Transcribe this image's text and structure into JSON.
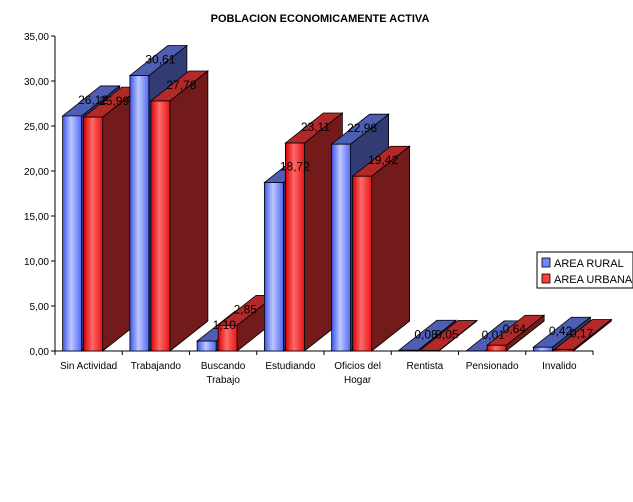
{
  "chart_data": {
    "type": "bar",
    "title": "POBLACION ECONOMICAMENTE ACTIVA",
    "categories": [
      [
        "Sin Actividad"
      ],
      [
        "Trabajando"
      ],
      [
        "Buscando",
        "Trabajo"
      ],
      [
        "Estudiando"
      ],
      [
        "Oficios del",
        "Hogar"
      ],
      [
        "Rentista"
      ],
      [
        "Pensionado"
      ],
      [
        "Invalido"
      ]
    ],
    "series": [
      {
        "name": "AREA RURAL",
        "color": "#6f86ff",
        "values": [
          26.12,
          30.61,
          1.1,
          18.72,
          22.98,
          0.08,
          0.01,
          0.42
        ],
        "labels": [
          "26,12",
          "30,61",
          "1,10",
          "18,72",
          "22,98",
          "0,08",
          "0,01",
          "0,42"
        ]
      },
      {
        "name": "AREA URBANA",
        "color": "#ff3b3b",
        "values": [
          25.99,
          27.78,
          2.85,
          23.11,
          19.42,
          0.05,
          0.64,
          0.17
        ],
        "labels": [
          "25,99",
          "27,78",
          "2,85",
          "23,11",
          "19,42",
          "0,05",
          "0,64",
          "0,17"
        ]
      }
    ],
    "y_ticks": [
      "0,00",
      "5,00",
      "10,00",
      "15,00",
      "20,00",
      "25,00",
      "30,00",
      "35,00"
    ],
    "ylim": [
      0,
      35
    ],
    "legend_position": "right"
  }
}
